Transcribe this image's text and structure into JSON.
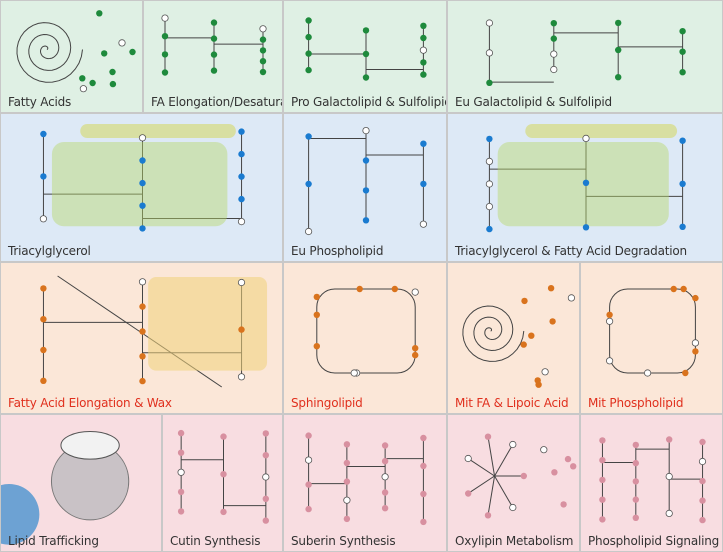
{
  "palette": {
    "green_dot": "#1e8a3c",
    "blue_dot": "#1a7bd0",
    "orange_dot": "#d9731d",
    "pink_dot": "#d890a0",
    "line": "#444444",
    "label_dark": "#333333",
    "label_red": "#e0301e"
  },
  "rows": [
    {
      "bg": "#dff0e4",
      "dot": "green",
      "panels": [
        {
          "label": "Fatty Acids",
          "label_color": "#333333",
          "icon": "spiral-pathway"
        },
        {
          "label": "FA Elongation/Desaturation",
          "label_color": "#333333",
          "icon": "branch-pathway"
        },
        {
          "label": "Pro Galactolipid & Sulfolipid",
          "label_color": "#333333",
          "icon": "chain-pathway"
        },
        {
          "label": "Eu Galactolipid & Sulfolipid",
          "label_color": "#333333",
          "icon": "chain-pathway"
        }
      ]
    },
    {
      "bg": "#dde9f6",
      "dot": "blue",
      "panels": [
        {
          "label": "Triacylglycerol",
          "label_color": "#333333",
          "icon": "compartment-pathway"
        },
        {
          "label": "Eu Phospholipid",
          "label_color": "#333333",
          "icon": "grid-pathway"
        },
        {
          "label": "Triacylglycerol & Fatty Acid Degradation",
          "label_color": "#333333",
          "icon": "compartment-pathway"
        }
      ]
    },
    {
      "bg": "#fbe7d8",
      "dot": "orange",
      "panels": [
        {
          "label": "Fatty Acid Elongation & Wax",
          "label_color": "#e0301e",
          "icon": "diagonal-pathway"
        },
        {
          "label": "Sphingolipid",
          "label_color": "#e0301e",
          "icon": "loop-pathway"
        },
        {
          "label": "Mit FA & Lipoic Acid",
          "label_color": "#e0301e",
          "icon": "spiral-pathway"
        },
        {
          "label": "Mit Phospholipid",
          "label_color": "#e0301e",
          "icon": "loop-pathway"
        }
      ]
    },
    {
      "bg": "#f8dde1",
      "dot": "pink",
      "panels": [
        {
          "label": "Lipid Trafficking",
          "label_color": "#333333",
          "icon": "cell-diagram"
        },
        {
          "label": "Cutin Synthesis",
          "label_color": "#333333",
          "icon": "tree-pathway"
        },
        {
          "label": "Suberin Synthesis",
          "label_color": "#333333",
          "icon": "chain-pathway"
        },
        {
          "label": "Oxylipin Metabolism",
          "label_color": "#333333",
          "icon": "star-pathway"
        },
        {
          "label": "Phospholipid Signaling",
          "label_color": "#333333",
          "icon": "grid-pathway"
        }
      ]
    }
  ]
}
